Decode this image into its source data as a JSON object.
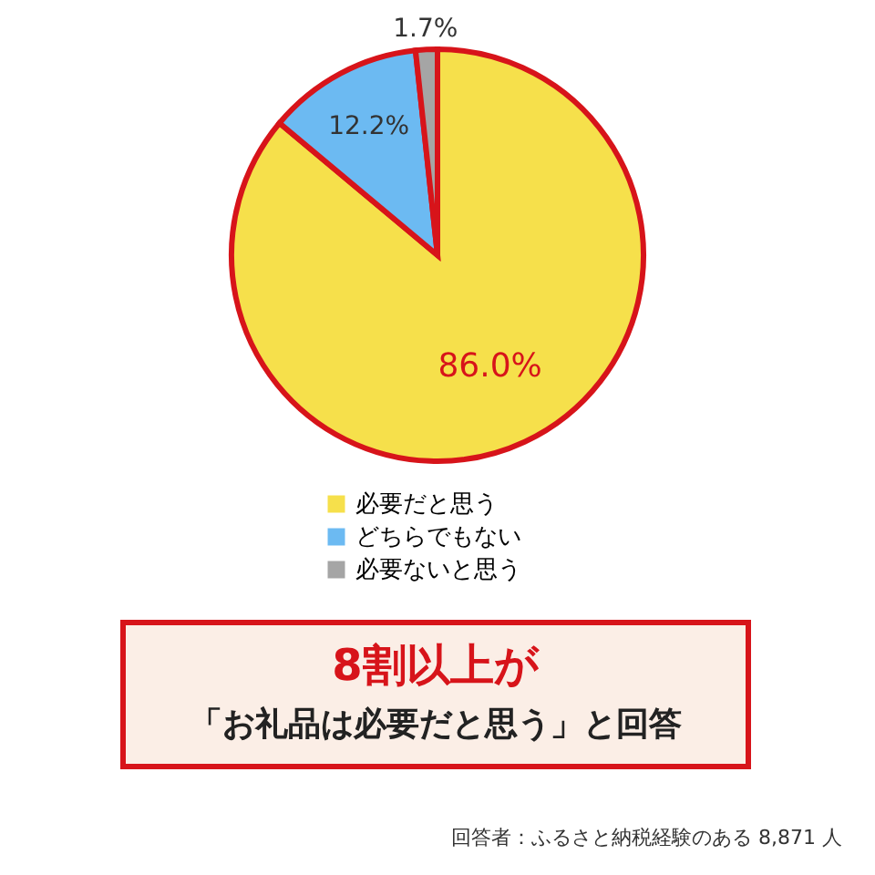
{
  "chart_data": {
    "type": "pie",
    "categories": [
      "必要だと思う",
      "どちらでもない",
      "必要ないと思う"
    ],
    "values": [
      86.0,
      12.2,
      1.7
    ],
    "colors": [
      "#f6e04b",
      "#6cbaf2",
      "#a5a5a5"
    ],
    "value_labels": [
      "86.0%",
      "12.2%",
      "1.7%"
    ],
    "legend": "bottom",
    "annotations": [
      "8割以上が",
      "「お礼品は必要だと思う」と回答",
      "回答者：ふるさと納税経験のある 8,871 人"
    ]
  }
}
